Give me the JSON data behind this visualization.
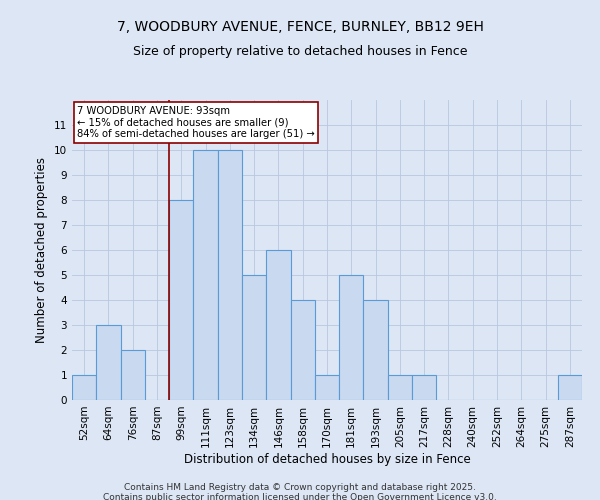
{
  "title1": "7, WOODBURY AVENUE, FENCE, BURNLEY, BB12 9EH",
  "title2": "Size of property relative to detached houses in Fence",
  "xlabel": "Distribution of detached houses by size in Fence",
  "ylabel": "Number of detached properties",
  "categories": [
    "52sqm",
    "64sqm",
    "76sqm",
    "87sqm",
    "99sqm",
    "111sqm",
    "123sqm",
    "134sqm",
    "146sqm",
    "158sqm",
    "170sqm",
    "181sqm",
    "193sqm",
    "205sqm",
    "217sqm",
    "228sqm",
    "240sqm",
    "252sqm",
    "264sqm",
    "275sqm",
    "287sqm"
  ],
  "values": [
    1,
    3,
    2,
    0,
    8,
    10,
    10,
    5,
    6,
    4,
    1,
    5,
    4,
    1,
    1,
    0,
    0,
    0,
    0,
    0,
    1
  ],
  "bar_color": "#c9d9f0",
  "bar_edgecolor": "#5b9bd5",
  "bar_linewidth": 0.8,
  "grid_color": "#b8c8e0",
  "background_color": "#dce6f5",
  "property_line_index": 4,
  "property_line_color": "#8b0000",
  "annotation_text": "7 WOODBURY AVENUE: 93sqm\n← 15% of detached houses are smaller (9)\n84% of semi-detached houses are larger (51) →",
  "annotation_box_color": "#ffffff",
  "annotation_box_edgecolor": "#8b0000",
  "ylim": [
    0,
    12
  ],
  "yticks": [
    0,
    1,
    2,
    3,
    4,
    5,
    6,
    7,
    8,
    9,
    10,
    11
  ],
  "footer1": "Contains HM Land Registry data © Crown copyright and database right 2025.",
  "footer2": "Contains public sector information licensed under the Open Government Licence v3.0.",
  "title_fontsize": 10,
  "subtitle_fontsize": 9,
  "axis_label_fontsize": 8.5,
  "tick_fontsize": 7.5,
  "footer_fontsize": 6.5
}
